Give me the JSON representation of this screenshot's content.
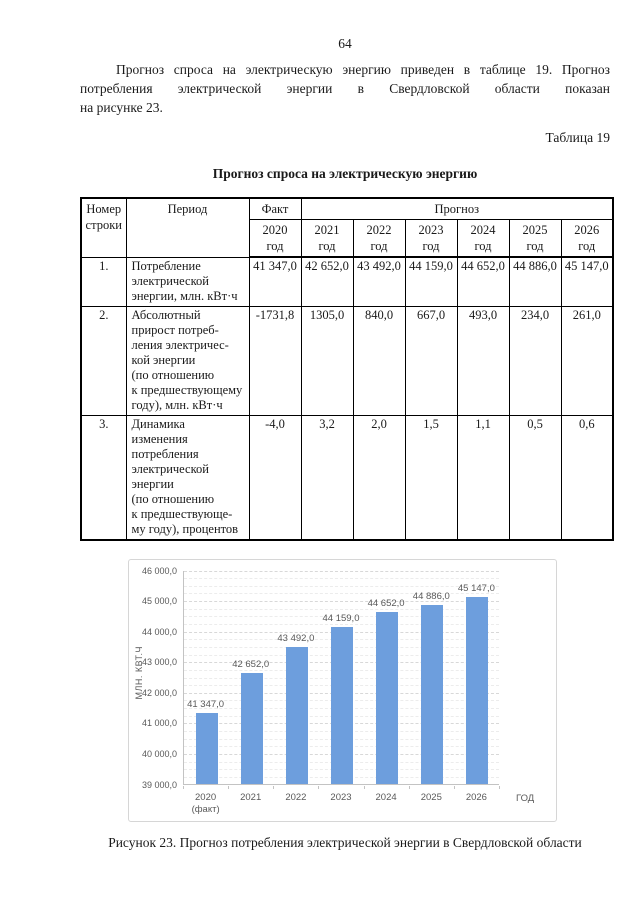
{
  "page": {
    "number": "64"
  },
  "paragraph": {
    "lines": [
      "Прогноз спроса на электрическую энергию приведен в таблице 19. Прогноз",
      "потребления электрической энергии в Свердловской области показан",
      "на рисунке 23."
    ]
  },
  "table_label": "Таблица 19",
  "table_title": "Прогноз спроса на электрическую энергию",
  "table": {
    "header": {
      "col_num": "Номер\nстроки",
      "col_period": "Период",
      "col_fact": "Факт",
      "col_forecast": "Прогноз",
      "years": [
        "2020\nгод",
        "2021\nгод",
        "2022\nгод",
        "2023\nгод",
        "2024\nгод",
        "2025\nгод",
        "2026\nгод"
      ]
    },
    "rows": [
      {
        "num": "1.",
        "period_lines": [
          "Потребление",
          "электрической",
          "энергии, млн. кВт·ч"
        ],
        "values": [
          "41 347,0",
          "42 652,0",
          "43 492,0",
          "44 159,0",
          "44 652,0",
          "44 886,0",
          "45 147,0"
        ]
      },
      {
        "num": "2.",
        "period_lines": [
          "Абсолютный",
          "прирост потреб-",
          "ления электричес-",
          "кой энергии",
          "(по отношению",
          "к предшествующему",
          "году), млн. кВт·ч"
        ],
        "values": [
          "-1731,8",
          "1305,0",
          "840,0",
          "667,0",
          "493,0",
          "234,0",
          "261,0"
        ]
      },
      {
        "num": "3.",
        "period_lines": [
          "Динамика",
          "изменения",
          "потребления",
          "электрической",
          "энергии",
          "(по отношению",
          "к предшествующе-",
          "му году), процентов"
        ],
        "values": [
          "-4,0",
          "3,2",
          "2,0",
          "1,5",
          "1,1",
          "0,5",
          "0,6"
        ]
      }
    ]
  },
  "chart_data": {
    "type": "bar",
    "title": "",
    "ylabel": "МЛН. КВТ.Ч",
    "xlabel": "ГОД",
    "categories": [
      "2020 (факт)",
      "2021",
      "2022",
      "2023",
      "2024",
      "2025",
      "2026"
    ],
    "x_tick_lines": [
      "2020\n(факт)",
      "2021",
      "2022",
      "2023",
      "2024",
      "2025",
      "2026"
    ],
    "values": [
      41347,
      42652,
      43492,
      44159,
      44652,
      44886,
      45147
    ],
    "value_labels": [
      "41 347,0",
      "42 652,0",
      "43 492,0",
      "44 159,0",
      "44 652,0",
      "44 886,0",
      "45 147,0"
    ],
    "ylim": [
      39000,
      46000
    ],
    "y_major_step": 1000,
    "y_minor_step": 250,
    "y_tick_labels": [
      "39 000,0",
      "40 000,0",
      "41 000,0",
      "42 000,0",
      "43 000,0",
      "44 000,0",
      "45 000,0",
      "46 000,0"
    ],
    "grid": "dashed",
    "legend": "none",
    "bar_color": "#6d9edd"
  },
  "figure_caption": "Рисунок 23. Прогноз потребления электрической энергии в Свердловской области"
}
